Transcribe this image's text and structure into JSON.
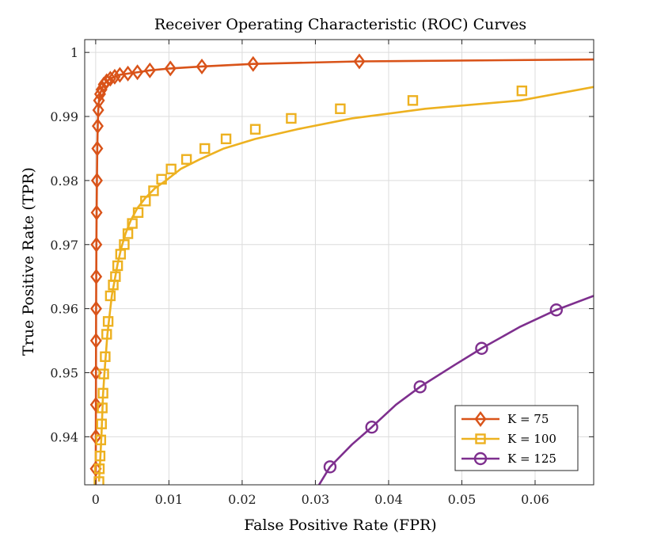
{
  "chart_data": {
    "type": "line",
    "title": "Receiver Operating Characteristic (ROC) Curves",
    "xlabel": "False Positive Rate (FPR)",
    "ylabel": "True Positive Rate (TPR)",
    "xlim": [
      -0.0015,
      0.068
    ],
    "ylim": [
      0.9325,
      1.002
    ],
    "xticks": [
      0,
      0.01,
      0.02,
      0.03,
      0.04,
      0.05,
      0.06
    ],
    "xtick_labels": [
      "0",
      "0.01",
      "0.02",
      "0.03",
      "0.04",
      "0.05",
      "0.06"
    ],
    "yticks": [
      0.94,
      0.95,
      0.96,
      0.97,
      0.98,
      0.99,
      1.0
    ],
    "ytick_labels": [
      "0.94",
      "0.95",
      "0.96",
      "0.97",
      "0.98",
      "0.99",
      "1"
    ],
    "grid": true,
    "legend_position": "bottom-right",
    "series": [
      {
        "name": "K = 75",
        "color": "#D95319",
        "marker": "diamond",
        "x": [
          0.0,
          1e-05,
          2e-05,
          3e-05,
          4e-05,
          5e-05,
          6e-05,
          8e-05,
          0.0001,
          0.00013,
          0.00017,
          0.00022,
          0.00028,
          0.00035,
          0.00045,
          0.0006,
          0.0008,
          0.0011,
          0.0015,
          0.002,
          0.0026,
          0.0033,
          0.0044,
          0.0057,
          0.0074,
          0.0102,
          0.0145,
          0.0215,
          0.036,
          0.068
        ],
        "y": [
          0.9325,
          0.935,
          0.94,
          0.945,
          0.95,
          0.955,
          0.96,
          0.965,
          0.97,
          0.975,
          0.98,
          0.985,
          0.9885,
          0.991,
          0.9925,
          0.9935,
          0.9942,
          0.995,
          0.9955,
          0.9959,
          0.9962,
          0.9965,
          0.9967,
          0.9969,
          0.9972,
          0.9975,
          0.9978,
          0.9982,
          0.9986,
          0.9989
        ],
        "marker_x": [
          1e-05,
          2e-05,
          3e-05,
          4e-05,
          5e-05,
          6e-05,
          8e-05,
          0.0001,
          0.00013,
          0.00017,
          0.00022,
          0.00028,
          0.00035,
          0.00045,
          0.0006,
          0.0008,
          0.0011,
          0.0015,
          0.002,
          0.0026,
          0.0033,
          0.0044,
          0.0057,
          0.0074,
          0.0102,
          0.0145,
          0.0215,
          0.036
        ],
        "marker_y": [
          0.935,
          0.94,
          0.945,
          0.95,
          0.955,
          0.96,
          0.965,
          0.97,
          0.975,
          0.98,
          0.985,
          0.9885,
          0.991,
          0.9925,
          0.9935,
          0.9942,
          0.995,
          0.9955,
          0.9959,
          0.9962,
          0.9965,
          0.9967,
          0.9969,
          0.9972,
          0.9975,
          0.9978,
          0.9982,
          0.9986
        ]
      },
      {
        "name": "K = 100",
        "color": "#EDB120",
        "marker": "square",
        "x": [
          0.00045,
          0.00055,
          0.00065,
          0.0008,
          0.0009,
          0.001,
          0.0012,
          0.0014,
          0.0016,
          0.0019,
          0.0022,
          0.0026,
          0.003,
          0.0035,
          0.0041,
          0.0048,
          0.0057,
          0.0068,
          0.0081,
          0.0096,
          0.0116,
          0.0142,
          0.0175,
          0.0218,
          0.0275,
          0.035,
          0.045,
          0.058,
          0.068
        ],
        "y": [
          0.933,
          0.935,
          0.937,
          0.9405,
          0.9435,
          0.9465,
          0.95,
          0.953,
          0.956,
          0.959,
          0.962,
          0.9645,
          0.967,
          0.9695,
          0.9718,
          0.9738,
          0.9757,
          0.9773,
          0.9788,
          0.98,
          0.9818,
          0.9833,
          0.985,
          0.9865,
          0.988,
          0.9897,
          0.9912,
          0.9925,
          0.9946
        ],
        "marker_x": [
          0.00045,
          0.0005,
          0.0006,
          0.0007,
          0.0008,
          0.0009,
          0.001,
          0.0011,
          0.0013,
          0.0015,
          0.0017,
          0.002,
          0.0024,
          0.0027,
          0.003,
          0.0034,
          0.0039,
          0.0044,
          0.005,
          0.0058,
          0.0068,
          0.0079,
          0.009,
          0.0103,
          0.0124,
          0.0149,
          0.0178,
          0.0218,
          0.0267,
          0.0334,
          0.0433,
          0.0582
        ],
        "marker_y": [
          0.933,
          0.935,
          0.937,
          0.9395,
          0.942,
          0.9445,
          0.9468,
          0.9498,
          0.9525,
          0.956,
          0.958,
          0.962,
          0.9637,
          0.965,
          0.9667,
          0.9685,
          0.97,
          0.9717,
          0.9733,
          0.975,
          0.9768,
          0.9784,
          0.9802,
          0.9818,
          0.9833,
          0.985,
          0.9865,
          0.988,
          0.9897,
          0.9912,
          0.9925,
          0.994
        ]
      },
      {
        "name": "K = 125",
        "color": "#7E2F8E",
        "marker": "circle",
        "x": [
          0.0305,
          0.032,
          0.035,
          0.0377,
          0.041,
          0.0443,
          0.049,
          0.0527,
          0.058,
          0.0629,
          0.068
        ],
        "y": [
          0.9325,
          0.9353,
          0.9388,
          0.9415,
          0.945,
          0.9478,
          0.9512,
          0.9538,
          0.9572,
          0.9598,
          0.962
        ],
        "marker_x": [
          0.032,
          0.0377,
          0.0443,
          0.0527,
          0.0629
        ],
        "marker_y": [
          0.9353,
          0.9415,
          0.9478,
          0.9538,
          0.9598
        ]
      }
    ]
  }
}
